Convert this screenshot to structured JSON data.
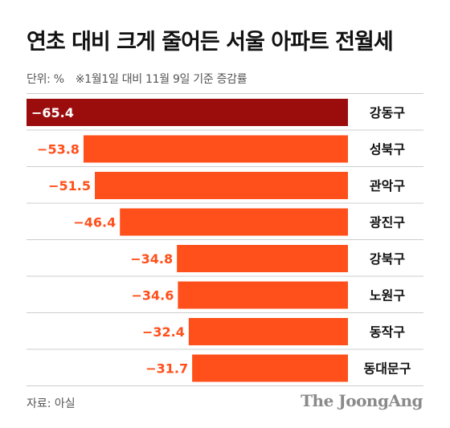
{
  "title": "연초 대비 크게 줄어든 서울 아파트 전월세",
  "unit_label": "단위: %",
  "note": "※1월1일 대비 11월 9일 기준 증감률",
  "source": "자료: 아실",
  "brand": "The JoongAng",
  "colors": {
    "highlight": "#9b0d0d",
    "bar": "#ff4f1b",
    "label_on_bar": "#ffffff",
    "label_off_bar": "#ff4f1b",
    "divider": "#cccccc"
  },
  "chart_data": {
    "type": "bar",
    "orientation": "horizontal",
    "categories": [
      "강동구",
      "성북구",
      "관악구",
      "광진구",
      "강북구",
      "노원구",
      "동작구",
      "동대문구"
    ],
    "values": [
      -65.4,
      -53.8,
      -51.5,
      -46.4,
      -34.8,
      -34.6,
      -32.4,
      -31.7
    ],
    "value_labels": [
      "−65.4",
      "−53.8",
      "−51.5",
      "−46.4",
      "−34.8",
      "−34.6",
      "−32.4",
      "−31.7"
    ],
    "highlight_index": 0,
    "xlim": [
      -65.4,
      0
    ]
  }
}
